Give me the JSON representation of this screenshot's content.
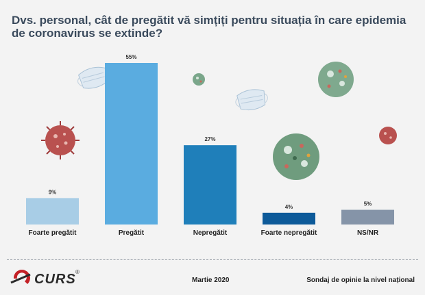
{
  "header": {
    "title": "Dvs. personal, cât de pregătit vă simțiți pentru situația în care epidemia de coronavirus se extinde?"
  },
  "chart_data": {
    "type": "bar",
    "title": "Dvs. personal, cât de pregătit vă simțiți pentru situația în care epidemia de coronavirus se extinde?",
    "categories": [
      "Foarte pregătit",
      "Pregătit",
      "Nepregătit",
      "Foarte nepregătit",
      "NS/NR"
    ],
    "values": [
      9,
      55,
      27,
      4,
      5
    ],
    "labels": [
      "9%",
      "55%",
      "27%",
      "4%",
      "5%"
    ],
    "colors": [
      "#a8cde6",
      "#5aace0",
      "#1f7fba",
      "#0d5a99",
      "#8594a8"
    ],
    "ylim": [
      0,
      55
    ],
    "xlabel": "",
    "ylabel": "",
    "grid": false,
    "legend": "none"
  },
  "footer": {
    "brand": "CURS",
    "registered": "®",
    "date": "Martie 2020",
    "note": "Sondaj de opinie la nivel național"
  },
  "decorations": {
    "masks": [
      "mask-icon",
      "mask-icon"
    ],
    "viruses": [
      "coronavirus-red-icon",
      "coronavirus-green-icon",
      "coronavirus-green-icon",
      "coronavirus-green-icon",
      "coronavirus-red-icon"
    ]
  }
}
